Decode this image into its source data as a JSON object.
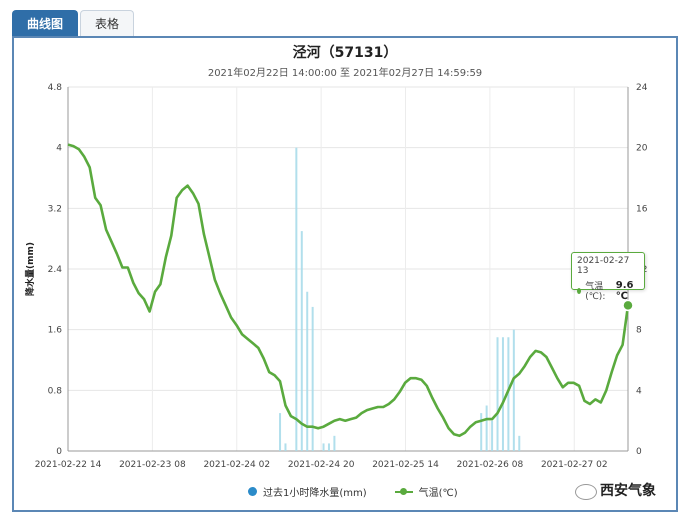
{
  "tabs": [
    {
      "label": "曲线图",
      "active": true
    },
    {
      "label": "表格",
      "active": false
    }
  ],
  "chart_data": {
    "type": "line",
    "title": "泾河（57131）",
    "subtitle": "2021年02月22日 14:00:00 至 2021年02月27日 14:59:59",
    "ylabel_left": "降水量(mm)",
    "ylim_left": [
      0,
      4.8
    ],
    "yticks_left": [
      "0",
      "0.8",
      "1.6",
      "2.4",
      "3.2",
      "4",
      "4.8"
    ],
    "ylim_right": [
      0,
      24
    ],
    "yticks_right": [
      "0",
      "4",
      "8",
      "12",
      "16",
      "20",
      "24"
    ],
    "xticks": [
      "2021-02-22 14",
      "2021-02-23 08",
      "2021-02-24 02",
      "2021-02-24 20",
      "2021-02-25 14",
      "2021-02-26 08",
      "2021-02-27 02"
    ],
    "legend_position": "bottom",
    "grid": true,
    "series": [
      {
        "name": "过去1小时降水量(mm)",
        "type": "bar",
        "color": "#a8dcea",
        "axis": "left",
        "points": [
          [
            39,
            0.5
          ],
          [
            40,
            0.1
          ],
          [
            42,
            4.0
          ],
          [
            43,
            2.9
          ],
          [
            44,
            2.1
          ],
          [
            45,
            1.9
          ],
          [
            47,
            0.1
          ],
          [
            48,
            0.1
          ],
          [
            49,
            0.2
          ],
          [
            76,
            0.5
          ],
          [
            77,
            0.6
          ],
          [
            78,
            0.4
          ],
          [
            79,
            1.5
          ],
          [
            80,
            1.5
          ],
          [
            81,
            1.5
          ],
          [
            82,
            1.6
          ],
          [
            83,
            0.2
          ]
        ]
      },
      {
        "name": "气温(℃)",
        "type": "line",
        "color": "#5aaa3e",
        "axis": "right",
        "values": [
          20.2,
          20.1,
          19.9,
          19.4,
          18.7,
          16.7,
          16.2,
          14.6,
          13.8,
          13.0,
          12.1,
          12.1,
          11.1,
          10.4,
          10.0,
          9.2,
          10.5,
          11.0,
          12.8,
          14.2,
          16.7,
          17.2,
          17.5,
          17.0,
          16.3,
          14.3,
          12.8,
          11.3,
          10.4,
          9.6,
          8.8,
          8.3,
          7.7,
          7.4,
          7.1,
          6.8,
          6.1,
          5.2,
          5.0,
          4.6,
          3.0,
          2.3,
          2.1,
          1.8,
          1.6,
          1.6,
          1.5,
          1.6,
          1.8,
          2.0,
          2.1,
          2.0,
          2.1,
          2.2,
          2.5,
          2.7,
          2.8,
          2.9,
          2.9,
          3.1,
          3.4,
          3.9,
          4.5,
          4.8,
          4.8,
          4.7,
          4.3,
          3.5,
          2.8,
          2.2,
          1.5,
          1.1,
          1.0,
          1.2,
          1.6,
          1.9,
          2.0,
          2.1,
          2.1,
          2.5,
          3.2,
          4.0,
          4.8,
          5.1,
          5.6,
          6.2,
          6.6,
          6.5,
          6.2,
          5.5,
          4.8,
          4.2,
          4.5,
          4.5,
          4.3,
          3.3,
          3.1,
          3.4,
          3.2,
          4.0,
          5.2,
          6.3,
          7.0,
          9.6
        ]
      }
    ]
  },
  "tooltip": {
    "time": "2021-02-27 13",
    "label": "气温(℃):",
    "value": "9.6 ℃"
  },
  "watermark": "西安气象"
}
